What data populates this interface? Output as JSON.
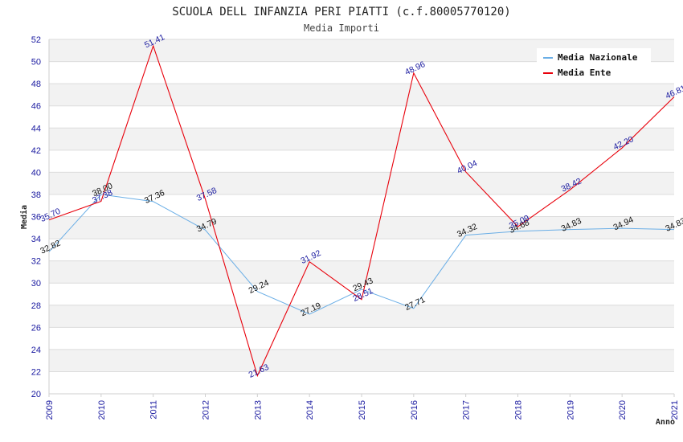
{
  "chart_data": {
    "type": "line",
    "title": "SCUOLA DELL INFANZIA PERI PIATTI (c.f.80005770120)",
    "subtitle": "Media Importi",
    "xlabel": "Anno",
    "ylabel": "Media",
    "ylim": [
      20,
      52
    ],
    "yticks": [
      "20",
      "22",
      "24",
      "26",
      "28",
      "30",
      "32",
      "34",
      "36",
      "38",
      "40",
      "42",
      "44",
      "46",
      "48",
      "50",
      "52"
    ],
    "categories": [
      "2009",
      "2010",
      "2011",
      "2012",
      "2013",
      "2014",
      "2015",
      "2016",
      "2017",
      "2018",
      "2019",
      "2020",
      "2021"
    ],
    "grid": "horizontal alternating bands",
    "legend_position": "top-right",
    "series": [
      {
        "name": "Media Nazionale",
        "color": "#6aaee6",
        "values": [
          32.82,
          38.0,
          37.36,
          34.79,
          29.24,
          27.19,
          29.43,
          27.71,
          34.32,
          34.68,
          34.83,
          34.94,
          34.83
        ],
        "labels": [
          "32.82",
          "38.00",
          "37.36",
          "34.79",
          "29.24",
          "27.19",
          "29.43",
          "27.71",
          "34.32",
          "34.68",
          "34.83",
          "34.94",
          "34.83"
        ]
      },
      {
        "name": "Media Ente",
        "color": "#e8000b",
        "values": [
          35.7,
          37.38,
          51.41,
          37.58,
          21.63,
          31.92,
          28.51,
          48.96,
          40.04,
          35.09,
          38.42,
          42.2,
          46.81
        ],
        "labels": [
          "35.70",
          "37.38",
          "51.41",
          "37.58",
          "21.63",
          "31.92",
          "28.51",
          "48.96",
          "40.04",
          "35.09",
          "38.42",
          "42.20",
          "46.81"
        ]
      }
    ]
  }
}
